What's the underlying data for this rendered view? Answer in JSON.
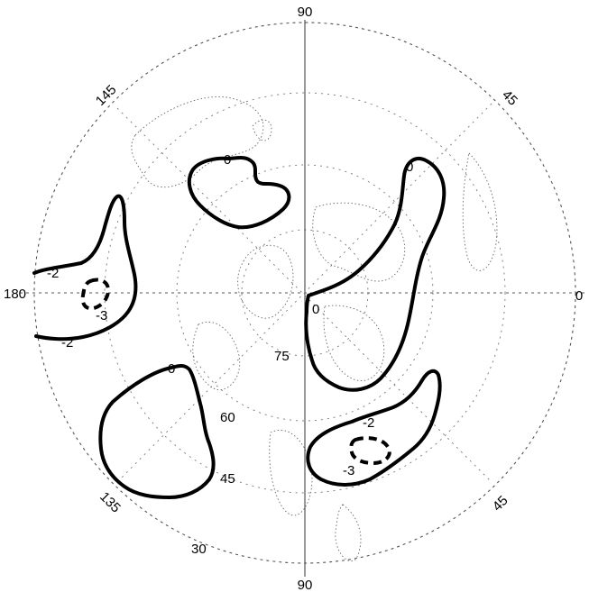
{
  "map": {
    "longitude_labels": {
      "top": "90",
      "bottom": "90",
      "left": "180",
      "right": "0",
      "upper_left": "145",
      "upper_right": "45",
      "lower_left": "135",
      "lower_right": "45"
    },
    "latitude_labels": {
      "lat75": "75",
      "lat60": "60",
      "lat45": "45",
      "lat30": "30"
    },
    "contour_labels": {
      "north_blob": "0",
      "right_upper": "0",
      "center": "0",
      "left_lower_blob": "0",
      "left_minus2_upper": "-2",
      "left_minus2_lower": "-2",
      "left_minus3": "-3",
      "right_minus2": "-2",
      "right_minus3": "-3"
    }
  }
}
